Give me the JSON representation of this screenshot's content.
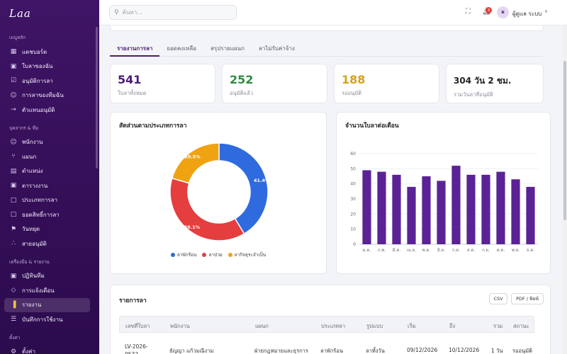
{
  "app": {
    "logo": "Laa"
  },
  "sidebar": {
    "sections": [
      {
        "title": "เมนูหลัก",
        "items": [
          {
            "label": "แดชบอร์ด",
            "icon": "grid-icon"
          },
          {
            "label": "ใบลาของฉัน",
            "icon": "calendar-icon"
          },
          {
            "label": "อนุมัติการลา",
            "icon": "check-square-icon"
          },
          {
            "label": "การลาของทีมฉัน",
            "icon": "users-icon"
          },
          {
            "label": "ตัวแทนอนุมัติ",
            "icon": "arrow-right-icon"
          }
        ]
      },
      {
        "title": "บุคลากร & ทีม",
        "items": [
          {
            "label": "พนักงาน",
            "icon": "users-icon"
          },
          {
            "label": "แผนก",
            "icon": "branch-icon"
          },
          {
            "label": "ตำแหน่ง",
            "icon": "briefcase-icon"
          },
          {
            "label": "ตารางงาน",
            "icon": "calendar-icon"
          },
          {
            "label": "ประเภทการลา",
            "icon": "document-icon"
          },
          {
            "label": "ยอดสิทธิ์การลา",
            "icon": "document-icon"
          },
          {
            "label": "วันหยุด",
            "icon": "flag-icon"
          },
          {
            "label": "สายอนุมัติ",
            "icon": "share-icon"
          }
        ]
      },
      {
        "title": "เครื่องมือ & รายงาน",
        "items": [
          {
            "label": "ปฏิทินทีม",
            "icon": "calendar-icon"
          },
          {
            "label": "การแจ้งเตือน",
            "icon": "bell-icon"
          },
          {
            "label": "รายงาน",
            "icon": "bar-chart-icon",
            "active": true
          },
          {
            "label": "บันทึกการใช้งาน",
            "icon": "list-icon"
          }
        ]
      },
      {
        "title": "ตั้งค่า",
        "items": [
          {
            "label": "ตั้งค่า",
            "icon": "gear-icon"
          }
        ]
      }
    ]
  },
  "header": {
    "search_placeholder": "ค้นหา...",
    "notification_count": "3",
    "avatar_initial": "ผ",
    "user_name": "ผู้ดูแล ระบบ"
  },
  "tabs": [
    {
      "label": "รายงานการลา",
      "active": true
    },
    {
      "label": "ยอดคงเหลือ"
    },
    {
      "label": "สรุปรายแผนก"
    },
    {
      "label": "ลาไม่รับค่าจ้าง"
    }
  ],
  "stats": [
    {
      "value": "541",
      "label": "ใบลาทั้งหมด",
      "color": "#4b1c7a"
    },
    {
      "value": "252",
      "label": "อนุมัติแล้ว",
      "color": "#2e8b3e"
    },
    {
      "value": "188",
      "label": "รออนุมัติ",
      "color": "#d4a21a"
    },
    {
      "value": "304 วัน 2 ชม.",
      "label": "รวมวันลาที่อนุมัติ",
      "color": "#222222"
    }
  ],
  "pie_card": {
    "title": "สัดส่วนตามประเภทการลา"
  },
  "bar_card": {
    "title": "จำนวนใบลาต่อเดือน"
  },
  "chart_data": [
    {
      "type": "pie",
      "title": "สัดส่วนตามประเภทการลา",
      "donut": true,
      "slices": [
        {
          "name": "ลาพักร้อน",
          "value": 41.4,
          "label": "41.4%",
          "color": "#2f6bde"
        },
        {
          "name": "ลาป่วย",
          "value": 38.1,
          "label": "38.1%",
          "color": "#e53e3e"
        },
        {
          "name": "ลากิจธุระจำเป็น",
          "value": 20.5,
          "label": "20.5%",
          "color": "#f0a310"
        }
      ],
      "legend_position": "bottom"
    },
    {
      "type": "bar",
      "title": "จำนวนใบลาต่อเดือน",
      "categories": [
        "ม.ค.",
        "ก.พ.",
        "มี.ค.",
        "เม.ย.",
        "พ.ค.",
        "มิ.ย.",
        "ก.ค.",
        "ส.ค.",
        "ก.ย.",
        "ต.ค.",
        "พ.ย.",
        "ธ.ค."
      ],
      "values": [
        49,
        48,
        46,
        38,
        45,
        42,
        52,
        46,
        46,
        48,
        43,
        38
      ],
      "ylim": [
        0,
        60
      ],
      "yticks": [
        0,
        10,
        20,
        30,
        40,
        50,
        60
      ],
      "color": "#5b2296",
      "grid": true
    }
  ],
  "table_card": {
    "title": "รายการลา",
    "csv_label": "CSV",
    "pdf_label": "PDF / พิมพ์",
    "columns": [
      "เลขที่ใบลา",
      "พนักงาน",
      "แผนก",
      "ประเภทลา",
      "รูปแบบ",
      "เริ่ม",
      "ถึง",
      "รวม",
      "สถานะ"
    ],
    "rows": [
      {
        "id_line1": "LV-2026-",
        "id_line2": "0532",
        "employee": "ธัญญา แก้วมณีงาม",
        "department": "ฝ่ายกฎหมายและธุรการ",
        "type": "ลาพักร้อน",
        "format": "ลาทั้งวัน",
        "start": "09/12/2026",
        "end": "10/12/2026",
        "total": "1 วัน",
        "status": "รออนุมัติ"
      }
    ]
  }
}
